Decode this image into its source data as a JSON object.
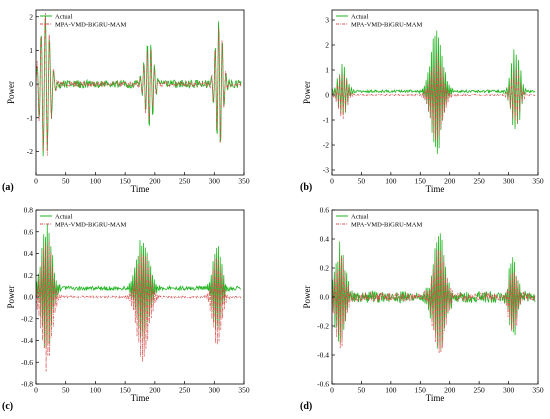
{
  "chart_data": [
    {
      "type": "line",
      "panel_label": "(a)",
      "xlabel": "Time",
      "ylabel": "Power",
      "xlim": [
        0,
        350
      ],
      "ylim": [
        -2.7,
        2.2
      ],
      "xticks": [
        0,
        50,
        100,
        150,
        200,
        250,
        300,
        350
      ],
      "yticks": [
        -2,
        -1,
        0,
        1,
        2
      ],
      "legend": "top-left",
      "grid": false,
      "series": [
        {
          "name": "Actual",
          "color": "#22b522",
          "style": "solid",
          "bursts": [
            [
              15,
              12,
              2.5,
              7
            ],
            [
              190,
              10,
              1.5,
              6
            ],
            [
              308,
              9,
              2.1,
              6
            ]
          ],
          "noise": 0.12,
          "offset": 0.0
        },
        {
          "name": "MPA-VMD-BiGRU-MAM",
          "color": "#d94c4c",
          "style": "dashdot",
          "bursts": [
            [
              15,
              12,
              2.4,
              7
            ],
            [
              190,
              10,
              1.4,
              6
            ],
            [
              308,
              9,
              2.0,
              6
            ]
          ],
          "noise": 0.08,
          "offset": 0.0
        }
      ]
    },
    {
      "type": "line",
      "panel_label": "(b)",
      "xlabel": "Time",
      "ylabel": "Power",
      "xlim": [
        0,
        350
      ],
      "ylim": [
        -3.2,
        3.4
      ],
      "xticks": [
        0,
        50,
        100,
        150,
        200,
        250,
        300,
        350
      ],
      "yticks": [
        -3,
        -2,
        -1,
        0,
        1,
        2,
        3
      ],
      "legend": "top-left",
      "grid": false,
      "series": [
        {
          "name": "Actual",
          "color": "#22b522",
          "style": "solid",
          "bursts": [
            [
              18,
              10,
              1.2,
              4
            ],
            [
              178,
              14,
              2.9,
              3
            ],
            [
              312,
              10,
              1.9,
              4
            ]
          ],
          "noise": 0.05,
          "offset": 0.15
        },
        {
          "name": "MPA-VMD-BiGRU-MAM",
          "color": "#d94c4c",
          "style": "dashdot",
          "bursts": [
            [
              18,
              10,
              1.1,
              4
            ],
            [
              178,
              14,
              2.1,
              3
            ],
            [
              312,
              10,
              1.3,
              4
            ]
          ],
          "noise": 0.03,
          "offset": 0.0
        }
      ]
    },
    {
      "type": "line",
      "panel_label": "(c)",
      "xlabel": "Time",
      "ylabel": "Power",
      "xlim": [
        0,
        350
      ],
      "ylim": [
        -0.8,
        0.8
      ],
      "xticks": [
        0,
        50,
        100,
        150,
        200,
        250,
        300,
        350
      ],
      "yticks": [
        -0.8,
        -0.6,
        -0.4,
        -0.2,
        0.0,
        0.2,
        0.4,
        0.6,
        0.8
      ],
      "legend": "top-left",
      "grid": false,
      "series": [
        {
          "name": "Actual",
          "color": "#22b522",
          "style": "solid",
          "bursts": [
            [
              18,
              12,
              0.72,
              3
            ],
            [
              180,
              14,
              0.6,
              3
            ],
            [
              305,
              10,
              0.5,
              3
            ]
          ],
          "noise": 0.02,
          "offset": 0.08
        },
        {
          "name": "MPA-VMD-BiGRU-MAM",
          "color": "#d94c4c",
          "style": "dashdot",
          "bursts": [
            [
              18,
              12,
              0.75,
              3
            ],
            [
              180,
              14,
              0.65,
              3
            ],
            [
              305,
              10,
              0.55,
              3
            ]
          ],
          "noise": 0.01,
          "offset": 0.0
        }
      ]
    },
    {
      "type": "line",
      "panel_label": "(d)",
      "xlabel": "Time",
      "ylabel": "Power",
      "xlim": [
        0,
        350
      ],
      "ylim": [
        -0.6,
        0.6
      ],
      "xticks": [
        0,
        50,
        100,
        150,
        200,
        250,
        300,
        350
      ],
      "yticks": [
        -0.6,
        -0.4,
        -0.2,
        0.0,
        0.2,
        0.4,
        0.6
      ],
      "legend": "top-left",
      "grid": false,
      "series": [
        {
          "name": "Actual",
          "color": "#22b522",
          "style": "solid",
          "bursts": [
            [
              14,
              12,
              0.42,
              3
            ],
            [
              182,
              14,
              0.5,
              3
            ],
            [
              308,
              10,
              0.33,
              3
            ]
          ],
          "noise": 0.04,
          "offset": 0.0
        },
        {
          "name": "MPA-VMD-BiGRU-MAM",
          "color": "#d94c4c",
          "style": "dashdot",
          "bursts": [
            [
              14,
              12,
              0.38,
              3
            ],
            [
              182,
              14,
              0.46,
              3
            ],
            [
              308,
              10,
              0.3,
              3
            ]
          ],
          "noise": 0.03,
          "offset": 0.0
        }
      ]
    }
  ]
}
